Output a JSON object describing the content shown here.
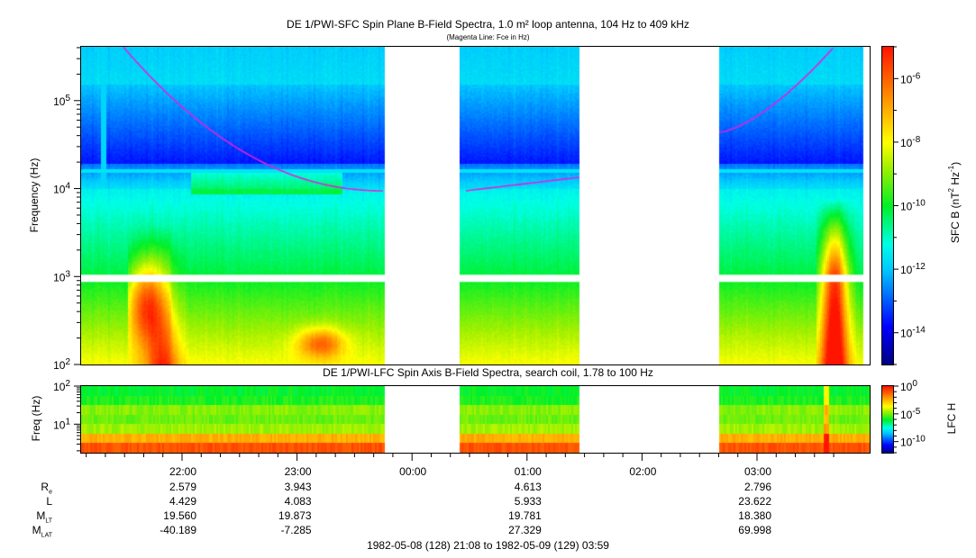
{
  "chart_data": [
    {
      "type": "heatmap",
      "title": "DE 1/PWI-SFC  Spin Plane B-Field Spectra, 1.0 m² loop antenna, 104 Hz to 409 kHz",
      "subtitle": "(Magenta Line: Fce in Hz)",
      "ylabel": "Frequency (Hz)",
      "yscale": "log",
      "ylim": [
        100,
        409000
      ],
      "yticks": [
        {
          "base": "10",
          "exp": "2"
        },
        {
          "base": "10",
          "exp": "3"
        },
        {
          "base": "10",
          "exp": "4"
        },
        {
          "base": "10",
          "exp": "5"
        }
      ],
      "colorbar": {
        "label_main": "SFC B (nT",
        "label_exp1": "2",
        "label_mid": " Hz",
        "label_exp2": "-1",
        "label_end": ")",
        "scale": "log",
        "range": [
          1e-15,
          1e-05
        ],
        "ticks": [
          {
            "base": "10",
            "exp": "-6"
          },
          {
            "base": "10",
            "exp": "-8"
          },
          {
            "base": "10",
            "exp": "-10"
          },
          {
            "base": "10",
            "exp": "-12"
          },
          {
            "base": "10",
            "exp": "-14"
          }
        ]
      },
      "data_gaps_hours": [
        [
          0.05,
          0.72
        ],
        [
          1.47,
          3.2
        ]
      ],
      "magenta_line": "Fce in Hz",
      "line_color": "#e020e0"
    },
    {
      "type": "heatmap",
      "title": "DE 1/PWI-LFC  Spin Axis B-Field Spectra, search coil, 1.78 to 100 Hz",
      "ylabel": "Freq (Hz)",
      "yscale": "log",
      "ylim": [
        1.78,
        100
      ],
      "yticks": [
        {
          "base": "10",
          "exp": "1"
        },
        {
          "base": "10",
          "exp": "2"
        }
      ],
      "colorbar": {
        "label": "LFC H",
        "scale": "log",
        "range": [
          1e-12,
          1
        ],
        "ticks": [
          {
            "base": "10",
            "exp": "0"
          },
          {
            "base": "10",
            "exp": "-5"
          },
          {
            "base": "10",
            "exp": "-10"
          }
        ]
      }
    }
  ],
  "xaxis": {
    "ticks": [
      "22:00",
      "23:00",
      "00:00",
      "01:00",
      "02:00",
      "03:00"
    ],
    "range_label": "1982-05-08 (128) 21:08 to 1982-05-09 (129) 03:59"
  },
  "ephemeris": {
    "rows": [
      {
        "label": "R",
        "sub": "e",
        "values": [
          "2.579",
          "3.943",
          "",
          "4.613",
          "",
          "2.796"
        ]
      },
      {
        "label": "L",
        "sub": "",
        "values": [
          "4.429",
          "4.083",
          "",
          "5.933",
          "",
          "23.622"
        ]
      },
      {
        "label": "M",
        "sub": "LT",
        "values": [
          "19.560",
          "19.873",
          "",
          "19.781",
          "",
          "18.380"
        ]
      },
      {
        "label": "M",
        "sub": "LAT",
        "values": [
          "-40.189",
          "-7.285",
          "",
          "27.329",
          "",
          "69.998"
        ]
      }
    ]
  }
}
